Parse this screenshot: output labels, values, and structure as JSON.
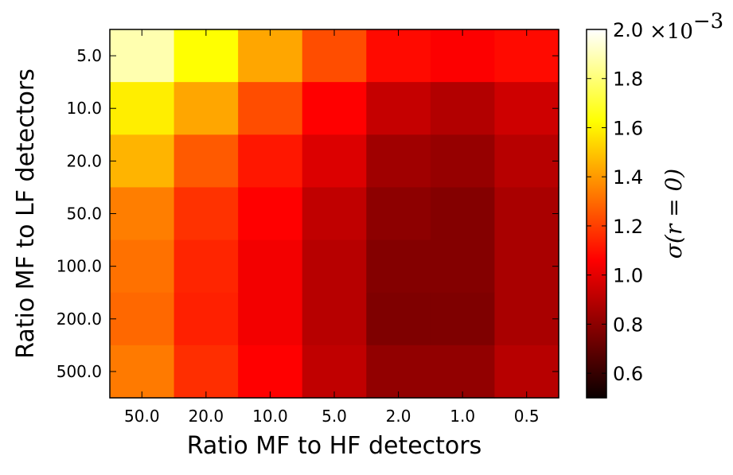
{
  "chart_data": {
    "type": "heatmap",
    "xlabel": "Ratio MF to HF detectors",
    "ylabel": "Ratio MF to LF detectors",
    "x_categories": [
      "50.0",
      "20.0",
      "10.0",
      "5.0",
      "2.0",
      "1.0",
      "0.5"
    ],
    "y_categories": [
      "5.0",
      "10.0",
      "20.0",
      "50.0",
      "100.0",
      "200.0",
      "500.0"
    ],
    "values": [
      [
        1.88,
        1.62,
        1.42,
        1.22,
        1.07,
        1.02,
        1.07
      ],
      [
        1.58,
        1.42,
        1.22,
        1.04,
        0.9,
        0.86,
        0.92
      ],
      [
        1.45,
        1.25,
        1.1,
        0.95,
        0.82,
        0.8,
        0.87
      ],
      [
        1.33,
        1.16,
        1.04,
        0.89,
        0.78,
        0.76,
        0.84
      ],
      [
        1.3,
        1.13,
        1.0,
        0.87,
        0.76,
        0.76,
        0.84
      ],
      [
        1.28,
        1.12,
        1.0,
        0.87,
        0.75,
        0.75,
        0.84
      ],
      [
        1.32,
        1.15,
        1.03,
        0.89,
        0.79,
        0.79,
        0.87
      ]
    ],
    "colormap": "hot",
    "colorbar": {
      "label": "σ(r = 0)",
      "range": [
        0.5,
        2.0
      ],
      "ticks": [
        "0.6",
        "0.8",
        "1.0",
        "1.2",
        "1.4",
        "1.6",
        "1.8",
        "2.0"
      ],
      "multiplier": "×10",
      "multiplier_exponent": "−3"
    },
    "grid": false
  }
}
